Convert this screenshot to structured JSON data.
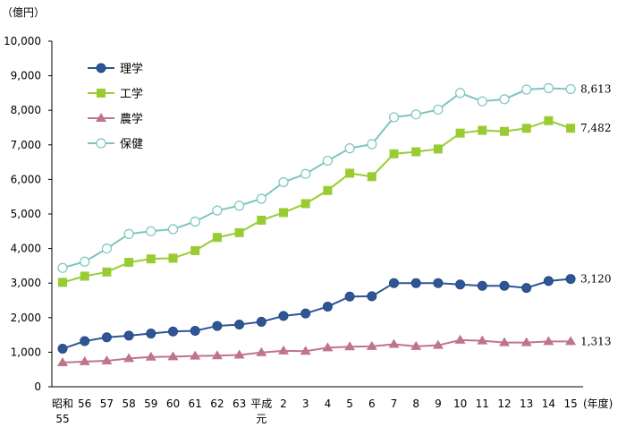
{
  "chart_data": {
    "type": "line",
    "ylabel": "（億円）",
    "xlabel_unit": "(年度)",
    "ylim": [
      0,
      10000
    ],
    "yticks": [
      "0",
      "1,000",
      "2,000",
      "3,000",
      "4,000",
      "5,000",
      "6,000",
      "7,000",
      "8,000",
      "9,000",
      "10,000"
    ],
    "x": [
      {
        "line1": "昭和",
        "line2": "55"
      },
      {
        "line1": "56",
        "line2": ""
      },
      {
        "line1": "57",
        "line2": ""
      },
      {
        "line1": "58",
        "line2": ""
      },
      {
        "line1": "59",
        "line2": ""
      },
      {
        "line1": "60",
        "line2": ""
      },
      {
        "line1": "61",
        "line2": ""
      },
      {
        "line1": "62",
        "line2": ""
      },
      {
        "line1": "63",
        "line2": ""
      },
      {
        "line1": "平成",
        "line2": "元"
      },
      {
        "line1": "2",
        "line2": ""
      },
      {
        "line1": "3",
        "line2": ""
      },
      {
        "line1": "4",
        "line2": ""
      },
      {
        "line1": "5",
        "line2": ""
      },
      {
        "line1": "6",
        "line2": ""
      },
      {
        "line1": "7",
        "line2": ""
      },
      {
        "line1": "8",
        "line2": ""
      },
      {
        "line1": "9",
        "line2": ""
      },
      {
        "line1": "10",
        "line2": ""
      },
      {
        "line1": "11",
        "line2": ""
      },
      {
        "line1": "12",
        "line2": ""
      },
      {
        "line1": "13",
        "line2": ""
      },
      {
        "line1": "14",
        "line2": ""
      },
      {
        "line1": "15",
        "line2": ""
      }
    ],
    "grid": false,
    "legend_position": "top-left",
    "series": [
      {
        "name": "理学",
        "color": "#2f5597",
        "marker": "circle-filled",
        "values": [
          1100,
          1320,
          1430,
          1480,
          1540,
          1600,
          1620,
          1760,
          1800,
          1880,
          2050,
          2120,
          2320,
          2610,
          2620,
          3000,
          3000,
          3000,
          2960,
          2920,
          2920,
          2860,
          3060,
          3120
        ],
        "end_label": "3,120"
      },
      {
        "name": "工学",
        "color": "#99cc33",
        "marker": "square",
        "values": [
          3020,
          3200,
          3320,
          3600,
          3700,
          3720,
          3940,
          4320,
          4460,
          4820,
          5040,
          5300,
          5680,
          6180,
          6080,
          6740,
          6800,
          6880,
          7340,
          7420,
          7390,
          7480,
          7700,
          7482
        ],
        "end_label": "7,482"
      },
      {
        "name": "農学",
        "color": "#c0748c",
        "marker": "triangle",
        "values": [
          700,
          730,
          750,
          820,
          860,
          870,
          890,
          900,
          920,
          990,
          1040,
          1030,
          1130,
          1160,
          1170,
          1230,
          1170,
          1200,
          1350,
          1330,
          1280,
          1280,
          1310,
          1313
        ],
        "end_label": "1,313"
      },
      {
        "name": "保健",
        "color": "#7cc6bf",
        "marker": "circle-open",
        "values": [
          3440,
          3620,
          4000,
          4420,
          4500,
          4560,
          4780,
          5100,
          5240,
          5440,
          5920,
          6160,
          6540,
          6900,
          7020,
          7800,
          7880,
          8020,
          8500,
          8260,
          8320,
          8600,
          8640,
          8613
        ],
        "end_label": "8,613"
      }
    ]
  }
}
